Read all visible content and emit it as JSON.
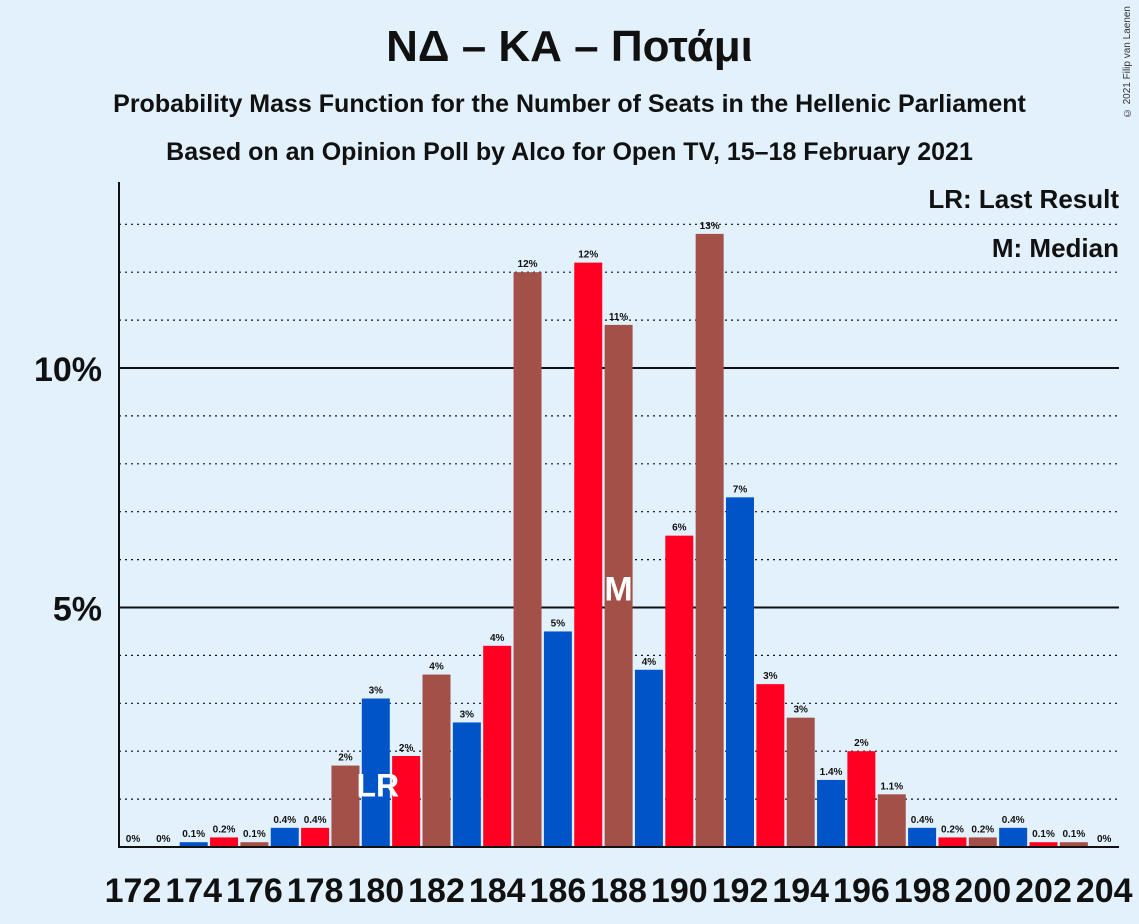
{
  "chart_data": {
    "type": "bar",
    "title": "ΝΔ – ΚΑ – Ποτάμι",
    "subtitle": "Probability Mass Function for the Number of Seats in the Hellenic Parliament",
    "subtitle2": "Based on an Opinion Poll by Alco for Open TV, 15–18 February 2021",
    "copyright": "© 2021 Filip van Laenen",
    "legend": [
      "LR: Last Result",
      "M: Median"
    ],
    "y_ticks": [
      {
        "value": 5,
        "label": "5%"
      },
      {
        "value": 10,
        "label": "10%"
      }
    ],
    "ylim": [
      0,
      14
    ],
    "x_tick_labels": [
      "172",
      "174",
      "176",
      "178",
      "180",
      "182",
      "184",
      "186",
      "188",
      "190",
      "192",
      "194",
      "196",
      "198",
      "200",
      "202",
      "204"
    ],
    "seats": [
      172,
      173,
      174,
      175,
      176,
      177,
      178,
      179,
      180,
      181,
      182,
      183,
      184,
      185,
      186,
      187,
      188,
      189,
      190,
      191,
      192,
      193,
      194,
      195,
      196,
      197,
      198,
      199,
      200,
      201,
      202,
      203,
      204
    ],
    "values": [
      0,
      0,
      0.1,
      0.2,
      0.1,
      0.4,
      0.4,
      1.7,
      3.1,
      1.9,
      3.6,
      2.6,
      4.2,
      12.0,
      4.5,
      12.2,
      10.9,
      3.7,
      6.5,
      12.8,
      7.3,
      3.4,
      2.7,
      1.4,
      2.0,
      1.1,
      0.4,
      0.2,
      0.2,
      0.4,
      0.1,
      0.1,
      0
    ],
    "labels": [
      "0%",
      "0%",
      "0.1%",
      "0.2%",
      "0.1%",
      "0.4%",
      "0.4%",
      "2%",
      "3%",
      "2%",
      "4%",
      "3%",
      "4%",
      "12%",
      "5%",
      "12%",
      "11%",
      "4%",
      "6%",
      "13%",
      "7%",
      "3%",
      "3%",
      "1.4%",
      "2%",
      "1.1%",
      "0.4%",
      "0.2%",
      "0.2%",
      "0.4%",
      "0.1%",
      "0.1%",
      "0%"
    ],
    "colors": [
      "#0054c8",
      "#ff0022",
      "#0054c8",
      "#ff0022",
      "#a35049",
      "#0054c8",
      "#ff0022",
      "#a35049",
      "#0054c8",
      "#ff0022",
      "#a35049",
      "#0054c8",
      "#ff0022",
      "#a35049",
      "#0054c8",
      "#ff0022",
      "#a35049",
      "#0054c8",
      "#ff0022",
      "#a35049",
      "#0054c8",
      "#ff0022",
      "#a35049",
      "#0054c8",
      "#ff0022",
      "#a35049",
      "#0054c8",
      "#ff0022",
      "#a35049",
      "#0054c8",
      "#ff0022",
      "#a35049",
      "#0054c8"
    ],
    "last_result_seat": 180,
    "last_result_marker": "LR",
    "median_seat": 188,
    "median_marker": "M"
  }
}
